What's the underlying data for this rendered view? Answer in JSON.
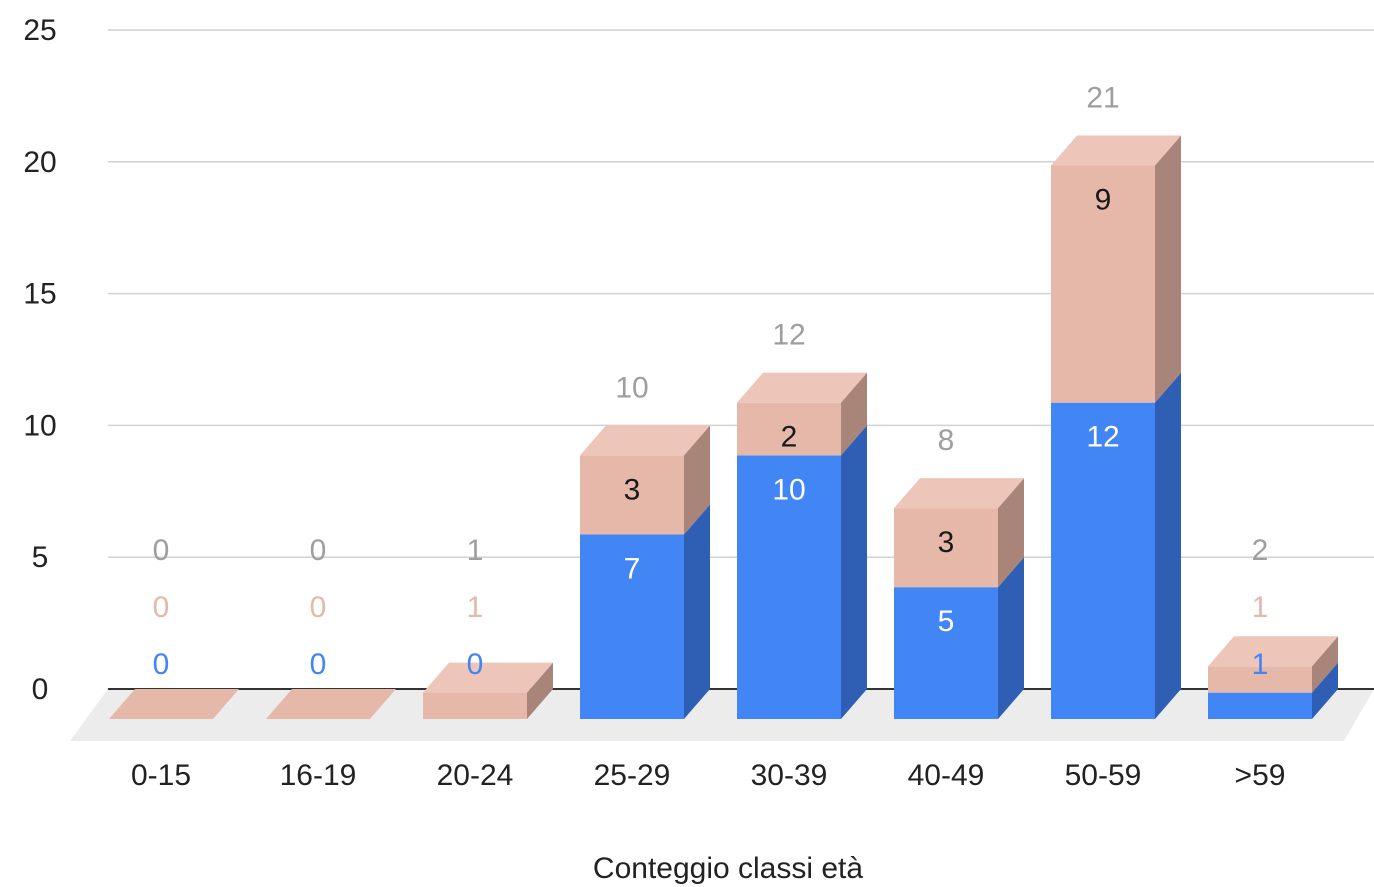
{
  "chart_data": {
    "type": "bar",
    "stacked": true,
    "three_d": true,
    "title": "",
    "xlabel": "Conteggio classi età",
    "ylabel": "",
    "ylim": [
      0,
      25
    ],
    "yticks": [
      0,
      5,
      10,
      15,
      20,
      25
    ],
    "grid": true,
    "legend": "none",
    "categories": [
      "0-15",
      "16-19",
      "20-24",
      "25-29",
      "30-39",
      "40-49",
      "50-59",
      ">59"
    ],
    "series": [
      {
        "values": [
          0,
          0,
          0,
          7,
          10,
          5,
          12,
          1
        ]
      },
      {
        "values": [
          0,
          0,
          1,
          3,
          2,
          3,
          9,
          1
        ]
      }
    ],
    "totals": [
      0,
      0,
      1,
      10,
      12,
      8,
      21,
      2
    ],
    "colors": {
      "series": [
        "#4285f4",
        "#e6b8a9"
      ],
      "series_side": [
        "#2f5fb4",
        "#a88479"
      ],
      "series_top": [
        "#6a9cf0",
        "#eec6b9"
      ],
      "floor": "#ececec",
      "grid": "#d2d2d2",
      "baseline": "#333333",
      "label_inside_dark": "#1a1a1a",
      "label_inside_light": "#ffffff",
      "label_outside_series1": "#4285f4",
      "label_outside_series2": "#e6b8a9",
      "label_total": "#9e9e9e"
    }
  }
}
